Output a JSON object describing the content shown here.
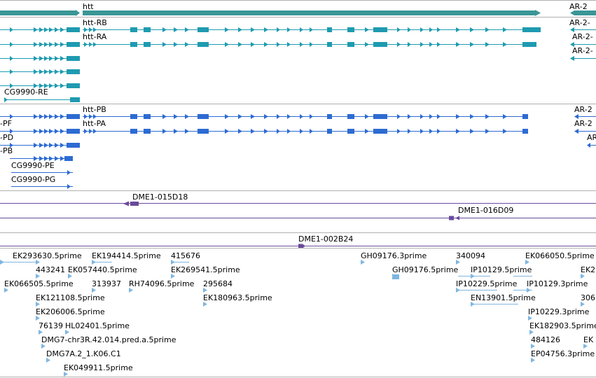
{
  "colors": {
    "gene": "#3a9696",
    "transcript_cds": "#1e9bb0",
    "protein": "#2d6bd2",
    "probe": "#6a4a9b",
    "est": "#7fb6e0",
    "divider": "#b0b0b0"
  },
  "gene_track": {
    "genes": [
      {
        "label": "htt"
      },
      {
        "label": "AR-2"
      }
    ]
  },
  "transcripts_track": {
    "labels": [
      "htt-RB",
      "htt-RA",
      "CG9990-RE",
      "AR-2-",
      "AR-2-",
      "AR-2-"
    ]
  },
  "proteins_track": {
    "labels": [
      "htt-PB",
      "htt-PA",
      "-PF",
      "-PD",
      "-PB",
      "CG9990-PE",
      "CG9990-PG",
      "AR-2",
      "AR-2",
      "AR"
    ]
  },
  "probes_track": {
    "labels": [
      "DME1-015D18",
      "DME1-016D09",
      "DME1-002B24"
    ]
  },
  "est_track": {
    "labels": [
      "EK293630.5prime",
      "EK194414.5prime",
      "415676",
      "443241",
      "EK057440.5prime",
      "EK269541.5prime",
      "EK066505.5prime",
      "313937",
      "RH74096.5prime",
      "295684",
      "EK121108.5prime",
      "EK180963.5prime",
      "EK206006.5prime",
      "76139",
      "HL02401.5prime",
      "DMG7-chr3R.42.014.pred.a.5prime",
      "DMG7A.2_1.K06.C1",
      "EK049911.5prime",
      "GH09176.3prime",
      "GH09176.5prime",
      "340094",
      "EK066050.5prime",
      "IP10129.5prime",
      "IP10229.5prime",
      "IP10129.3prime",
      "EN13901.5prime",
      "IP10229.3prime",
      "EK182903.5prime",
      "484126",
      "EP04756.3prime",
      "EK2",
      "306",
      "EK"
    ]
  }
}
